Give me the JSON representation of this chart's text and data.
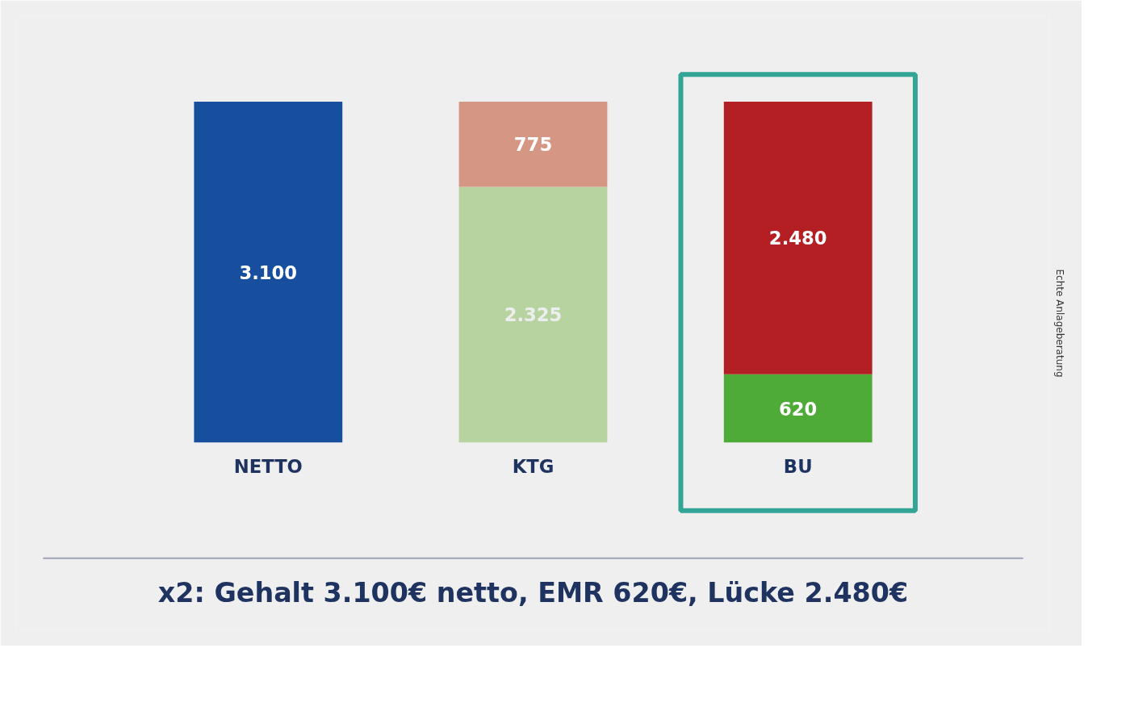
{
  "chart_data": {
    "type": "bar",
    "stacked": true,
    "categories": [
      "NETTO",
      "KTG",
      "BU"
    ],
    "series": [
      {
        "colors": [
          "#174f9e",
          "#b6d3a0",
          "#4fab38"
        ],
        "values": [
          3100,
          2325,
          620
        ],
        "value_labels": [
          "3.100",
          "2.325",
          "620"
        ]
      },
      {
        "colors": [
          "#174f9e",
          "#d59683",
          "#b31f23"
        ],
        "values": [
          null,
          775,
          2480
        ],
        "value_labels": [
          null,
          "775",
          "2.480"
        ]
      }
    ],
    "grid": false,
    "annotations": [
      "x2: Gehalt 3.100€ netto, EMR 620€, Lücke 2.480€",
      "Echte Anlageberatung"
    ]
  }
}
